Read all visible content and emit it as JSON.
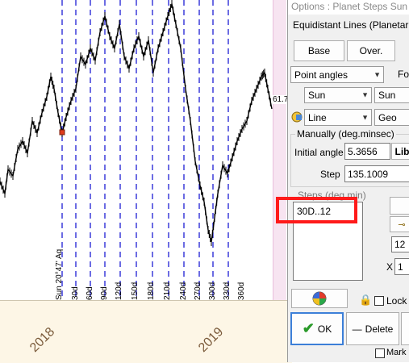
{
  "chart": {
    "price_label": "61.7",
    "year_labels": [
      "2018",
      "2019"
    ],
    "vertical_line_labels": [
      "Sun 20°47' Aq",
      "30d",
      "60d",
      "90d",
      "120d",
      "150d",
      "180d",
      "210d",
      "240d",
      "270d",
      "300d",
      "330d",
      "360d"
    ],
    "colors": {
      "price": "#000000",
      "lines": "#0b0bd0",
      "marker": "#e03c1c"
    }
  },
  "dialog": {
    "title": "Options : Planet Steps  Sun",
    "section_title": "Equidistant Lines (Planetar",
    "base_button": "Base",
    "over_button": "Over.",
    "mode_select": "Point angles",
    "fo_label": "Fo",
    "planet_select": "Sun",
    "planet_select2": "Sun",
    "line_select": "Line",
    "geo_select": "Geo",
    "manual_group_label": "Manually (deg.minsec)",
    "initial_angle_label": "Initial angle",
    "initial_angle_value": "5.3656",
    "lib_button": "Lib",
    "step_label": "Step",
    "step_value": "135.1009",
    "steps_group_label": "Steps (deg.min)",
    "steps_value": "30D..12",
    "right_field_value": "12",
    "x_label": "X",
    "x_value": "1",
    "locked_label": "Lock",
    "ok_button": "OK",
    "delete_button": "Delete",
    "mark_label": "Mark B"
  }
}
